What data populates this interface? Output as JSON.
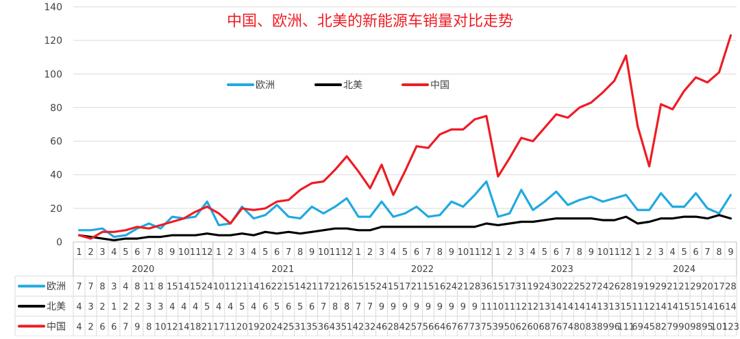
{
  "chart_data": {
    "type": "line",
    "title": "中国、欧洲、北美的新能源车销量对比走势",
    "ylim": [
      0,
      140
    ],
    "yticks": [
      0,
      20,
      40,
      60,
      80,
      100,
      120,
      140
    ],
    "grid": true,
    "legend_position": "middle-left",
    "years": [
      {
        "label": "2020",
        "months": 12
      },
      {
        "label": "2021",
        "months": 12
      },
      {
        "label": "2022",
        "months": 12
      },
      {
        "label": "2023",
        "months": 12
      },
      {
        "label": "2024",
        "months": 9
      }
    ],
    "months": [
      "1",
      "2",
      "3",
      "4",
      "5",
      "6",
      "7",
      "8",
      "9",
      "10",
      "11",
      "12",
      "1",
      "2",
      "3",
      "4",
      "5",
      "6",
      "7",
      "8",
      "9",
      "10",
      "11",
      "12",
      "1",
      "2",
      "3",
      "4",
      "5",
      "6",
      "7",
      "8",
      "9",
      "10",
      "11",
      "12",
      "1",
      "2",
      "3",
      "4",
      "5",
      "6",
      "7",
      "8",
      "9",
      "10",
      "11",
      "12",
      "1",
      "2",
      "3",
      "4",
      "5",
      "6",
      "7",
      "8",
      "9"
    ],
    "series": [
      {
        "name": "欧洲",
        "color": "#1fa9e1",
        "values": [
          7,
          7,
          8,
          3,
          4,
          8,
          11,
          8,
          15,
          14,
          15,
          24,
          10,
          11,
          21,
          14,
          16,
          22,
          15,
          14,
          21,
          17,
          21,
          26,
          15,
          15,
          24,
          15,
          17,
          21,
          15,
          16,
          24,
          21,
          28,
          36,
          15,
          17,
          31,
          19,
          24,
          30,
          22,
          25,
          27,
          24,
          26,
          28,
          19,
          19,
          29,
          21,
          21,
          29,
          20,
          17,
          28
        ]
      },
      {
        "name": "北美",
        "color": "#000000",
        "values": [
          4,
          3,
          2,
          1,
          2,
          2,
          3,
          3,
          4,
          4,
          4,
          5,
          4,
          4,
          5,
          4,
          6,
          5,
          6,
          5,
          6,
          7,
          8,
          8,
          7,
          7,
          9,
          9,
          9,
          9,
          9,
          9,
          9,
          9,
          9,
          11,
          10,
          11,
          12,
          12,
          13,
          14,
          14,
          14,
          14,
          13,
          13,
          15,
          11,
          12,
          14,
          14,
          15,
          15,
          14,
          16,
          14
        ]
      },
      {
        "name": "中国",
        "color": "#ee1c24",
        "values": [
          4,
          2,
          6,
          6,
          7,
          9,
          8,
          10,
          12,
          14,
          18,
          21,
          17,
          11,
          20,
          19,
          20,
          24,
          25,
          31,
          35,
          36,
          43,
          51,
          42,
          32,
          46,
          28,
          42,
          57,
          56,
          64,
          67,
          67,
          73,
          75,
          39,
          50,
          62,
          60,
          68,
          76,
          74,
          80,
          83,
          89,
          96,
          111,
          69,
          45,
          82,
          79,
          90,
          98,
          95,
          101,
          123
        ]
      }
    ],
    "table_rows": [
      {
        "name": "欧洲",
        "display": [
          "7",
          "7",
          "8",
          "3",
          "4",
          "8",
          "11",
          "8",
          "15",
          "14",
          "15",
          "24",
          "10",
          "11",
          "21",
          "14",
          "16",
          "22",
          "15",
          "14",
          "21",
          "17",
          "21",
          "26",
          "15",
          "15",
          "24",
          "15",
          "17",
          "21",
          "15",
          "16",
          "24",
          "21",
          "28",
          "36",
          "15",
          "17",
          "31",
          "19",
          "24",
          "30",
          "22",
          "25",
          "27",
          "24",
          "26",
          "28",
          "19",
          "19",
          "29",
          "21",
          "21",
          "29",
          "20",
          "17",
          "28"
        ]
      },
      {
        "name": "北美",
        "display": [
          "4",
          "3",
          "2",
          "1",
          "2",
          "2",
          "3",
          "3",
          "4",
          "4",
          "4",
          "5",
          "4",
          "4",
          "5",
          "4",
          "6",
          "5",
          "6",
          "5",
          "6",
          "7",
          "8",
          "8",
          "7",
          "7",
          "9",
          "9",
          "9",
          "9",
          "9",
          "9",
          "9",
          "9",
          "9",
          "11",
          "10",
          "11",
          "12",
          "12",
          "13",
          "14",
          "14",
          "14",
          "14",
          "13",
          "13",
          "15",
          "11",
          "12",
          "14",
          "14",
          "15",
          "15",
          "14",
          "16",
          "14"
        ]
      },
      {
        "name": "中国",
        "display": [
          "4",
          "2",
          "6",
          "6",
          "7",
          "9",
          "8",
          "10",
          "12",
          "14",
          "18",
          "21",
          "17",
          "11",
          "20",
          "19",
          "20",
          "24",
          "25",
          "31",
          "35",
          "36",
          "43",
          "51",
          "42",
          "32",
          "46",
          "28",
          "42",
          "57",
          "56",
          "64",
          "67",
          "67",
          "73",
          "75",
          "39",
          "50",
          "62",
          "60",
          "68",
          "76",
          "74",
          "80",
          "83",
          "89",
          "96",
          "111",
          "69",
          "45",
          "82",
          "79",
          "90",
          "98",
          "95",
          "101",
          "123"
        ]
      }
    ]
  }
}
